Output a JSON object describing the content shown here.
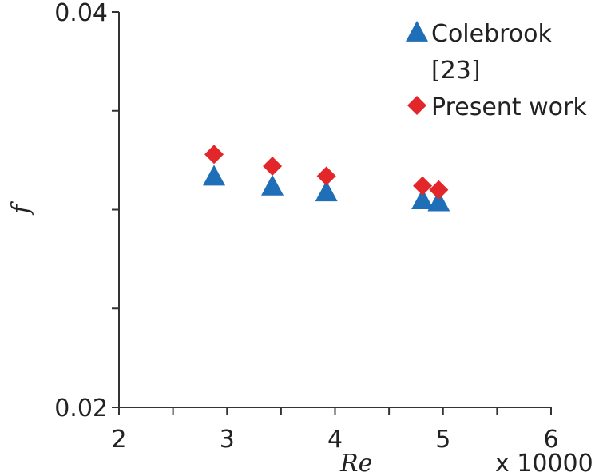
{
  "chart_data": {
    "type": "scatter",
    "title": "",
    "xlabel": "Re",
    "ylabel": "f",
    "x_multiplier_label": "x 10000",
    "xlim": [
      2,
      6
    ],
    "ylim": [
      0.02,
      0.04
    ],
    "x_ticks": [
      2,
      3,
      4,
      5,
      6
    ],
    "x_tick_labels": [
      "2",
      "3",
      "4",
      "5",
      "6"
    ],
    "x_minor_ticks": [
      2.5,
      3.5,
      4.5,
      5.5
    ],
    "y_ticks": [
      0.02,
      0.025,
      0.03,
      0.035,
      0.04
    ],
    "y_tick_labels": [
      "0.02",
      "",
      "",
      "",
      "0.04"
    ],
    "grid": false,
    "legend_position": "top-right",
    "series": [
      {
        "name": "Colebrook [23]",
        "legend_lines": [
          "Colebrook",
          "[23]"
        ],
        "marker": "triangle",
        "color": "#1f6fb8",
        "x": [
          2.88,
          3.42,
          3.92,
          4.81,
          4.96
        ],
        "y": [
          0.0317,
          0.0312,
          0.0309,
          0.0305,
          0.0304
        ]
      },
      {
        "name": "Present work",
        "legend_lines": [
          "Present work"
        ],
        "marker": "diamond",
        "color": "#e3262a",
        "x": [
          2.88,
          3.42,
          3.92,
          4.81,
          4.96
        ],
        "y": [
          0.0328,
          0.0322,
          0.0317,
          0.0312,
          0.031
        ]
      }
    ]
  }
}
